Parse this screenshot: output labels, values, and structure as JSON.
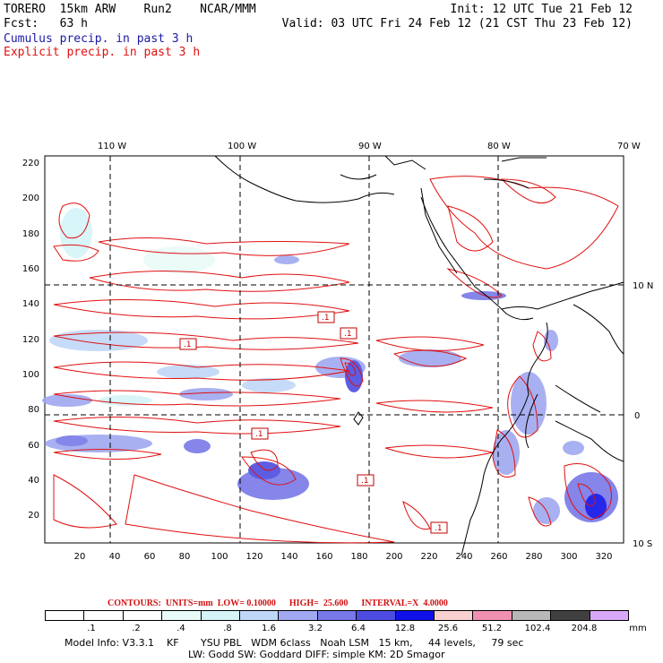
{
  "header": {
    "line1_left": "TORERO  15km ARW    Run2    NCAR/MMM",
    "line1_right": "Init: 12 UTC Tue 21 Feb 12",
    "line2_left": "Fcst:   63 h",
    "line2_right": "Valid: 03 UTC Fri 24 Feb 12 (21 CST Thu 23 Feb 12)",
    "legend_cumulus": "Cumulus precip. in past 3 h",
    "legend_explicit": "Explicit precip. in past 3 h"
  },
  "axes": {
    "lon_labels": [
      "110 W",
      "100 W",
      "90 W",
      "80 W",
      "70 W"
    ],
    "lat_labels": [
      "10 N",
      "0",
      "10 S"
    ],
    "y_ticks": [
      "220",
      "200",
      "180",
      "160",
      "140",
      "120",
      "100",
      "80",
      "60",
      "40",
      "20"
    ],
    "x_ticks": [
      "20",
      "40",
      "60",
      "80",
      "100",
      "120",
      "140",
      "160",
      "180",
      "200",
      "220",
      "240",
      "260",
      "280",
      "300",
      "320"
    ]
  },
  "map_labels": [
    ".1",
    ".1",
    ".1",
    ".1",
    ".1",
    ".1"
  ],
  "contours_info": "CONTOURS:  UNITS=mm  LOW= 0.10000      HIGH=  25.600      INTERVAL=X  4.0000",
  "colorbar": {
    "colors": [
      "#ffffff",
      "#ffffff",
      "#ffffff",
      "#e8fbf8",
      "#d4f4f8",
      "#c0d8f8",
      "#9fa8f0",
      "#7878e8",
      "#4c4ce0",
      "#1010e8",
      "#f8d0d0",
      "#f090b0",
      "#b8b8b8",
      "#404040",
      "#d8a8f8"
    ],
    "labels": [
      ".1",
      ".2",
      ".4",
      ".8",
      "1.6",
      "3.2",
      "6.4",
      "12.8",
      "25.6",
      "51.2",
      "102.4",
      "204.8"
    ],
    "unit": "mm"
  },
  "footer": {
    "line1": "Model Info: V3.3.1    KF       YSU PBL   WDM 6class   Noah LSM   15 km,     44 levels,     79 sec",
    "line2": "LW: Godd SW: Goddard DIFF: simple KM: 2D Smagor"
  }
}
